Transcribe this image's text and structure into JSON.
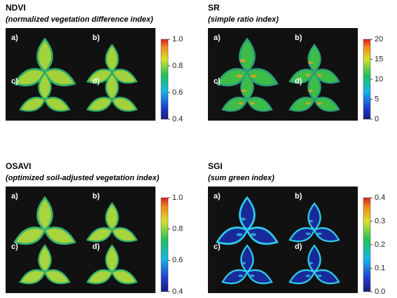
{
  "panels": [
    {
      "title": "NDVI",
      "subtitle": "(normalized vegetation difference index)",
      "labels": [
        "a)",
        "b)",
        "c)",
        "d)"
      ],
      "scale": [
        "1.0",
        "0.8",
        "0.6",
        "0.4"
      ]
    },
    {
      "title": "SR",
      "subtitle": "(simple ratio index)",
      "labels": [
        "a)",
        "b)",
        "c)",
        "d)"
      ],
      "scale": [
        "20",
        "15",
        "10",
        "5",
        "0"
      ]
    },
    {
      "title": "OSAVI",
      "subtitle": "(optimized soil-adjusted vegetation index)",
      "labels": [
        "a)",
        "b)",
        "c)",
        "d)"
      ],
      "scale": [
        "1.0",
        "0.8",
        "0.6",
        "0.4"
      ]
    },
    {
      "title": "SGI",
      "subtitle": "(sum green index)",
      "labels": [
        "a)",
        "b)",
        "c)",
        "d)"
      ],
      "scale": [
        "0.4",
        "0.3",
        "0.2",
        "0.1",
        "0.0"
      ]
    }
  ]
}
